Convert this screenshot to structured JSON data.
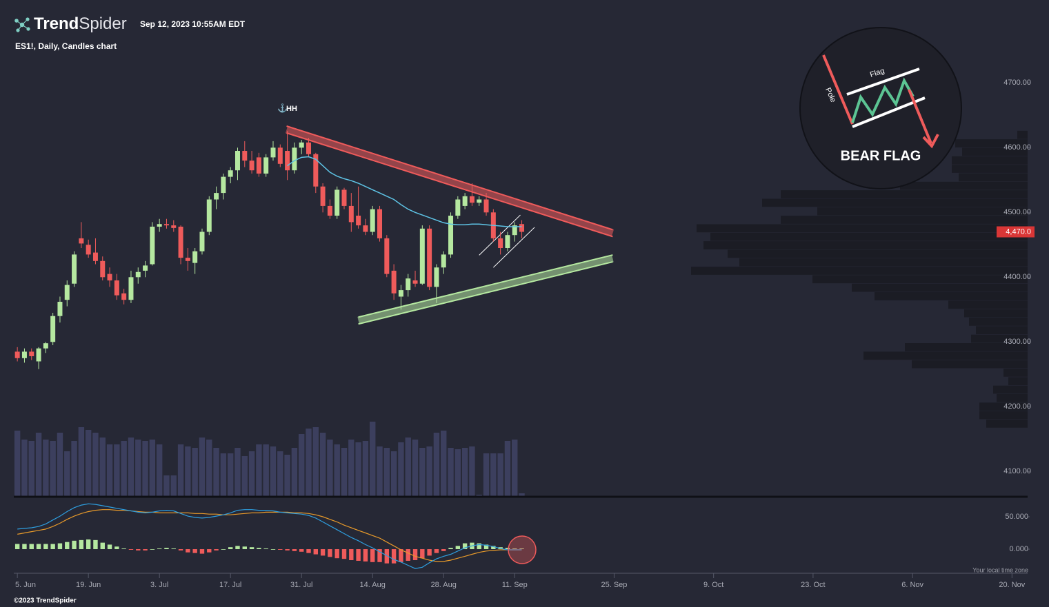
{
  "header": {
    "brand_bold": "Trend",
    "brand_light": "Spider",
    "timestamp": "Sep 12, 2023 10:55AM EDT"
  },
  "footer": {
    "copyright": "©2023 TrendSpider",
    "timezone": "Your local time zone"
  },
  "inset": {
    "pole": "Pole",
    "flag": "Flag",
    "title": "BEAR FLAG"
  },
  "chart_data": {
    "type": "candlestick",
    "title": "ES1!, Daily, Candles chart",
    "annotation": "HH",
    "xlim": [
      -0.5,
      142.2
    ],
    "xticks": [
      {
        "value": 0,
        "label": "5. Jun"
      },
      {
        "value": 10,
        "label": "19. Jun"
      },
      {
        "value": 20,
        "label": "3. Jul"
      },
      {
        "value": 30,
        "label": "17. Jul"
      },
      {
        "value": 40,
        "label": "31. Jul"
      },
      {
        "value": 50,
        "label": "14. Aug"
      },
      {
        "value": 60,
        "label": "28. Aug"
      },
      {
        "value": 70,
        "label": "11. Sep"
      },
      {
        "value": 84,
        "label": "25. Sep"
      },
      {
        "value": 98,
        "label": "9. Oct"
      },
      {
        "value": 112,
        "label": "23. Oct"
      },
      {
        "value": 126,
        "label": "6. Nov"
      },
      {
        "value": 140,
        "label": "20. Nov"
      }
    ],
    "ylim": [
      4062,
      4828
    ],
    "yticks": [
      {
        "value": 4100,
        "label": "4100.00"
      },
      {
        "value": 4200,
        "label": "4200.00"
      },
      {
        "value": 4300,
        "label": "4300.00"
      },
      {
        "value": 4400,
        "label": "4400.00"
      },
      {
        "value": 4500,
        "label": "4500.00"
      },
      {
        "value": 4600,
        "label": "4600.00"
      },
      {
        "value": 4700,
        "label": "4700.00"
      }
    ],
    "up_color": "#b5e8a0",
    "down_color": "#ef5b5b",
    "open": [
      4285,
      4275,
      4285,
      4270,
      4290,
      4300,
      4340,
      4365,
      4390,
      4460,
      4450,
      4438,
      4425,
      4405,
      4395,
      4375,
      4365,
      4400,
      4410,
      4420,
      4478,
      4482,
      4480,
      4478,
      4430,
      4422,
      4440,
      4470,
      4520,
      4530,
      4555,
      4565,
      4595,
      4580,
      4585,
      4560,
      4585,
      4600,
      4595,
      4565,
      4600,
      4608,
      4590,
      4540,
      4510,
      4495,
      4535,
      4510,
      4495,
      4480,
      4470,
      4505,
      4460,
      4410,
      4370,
      4380,
      4395,
      4390,
      4475,
      4385,
      4415,
      4435,
      4495,
      4510,
      4525,
      4515,
      4520,
      4500,
      4460,
      4445,
      4465,
      4482
    ],
    "high": [
      4292,
      4290,
      4290,
      4292,
      4300,
      4345,
      4370,
      4395,
      4440,
      4485,
      4458,
      4460,
      4432,
      4415,
      4405,
      4382,
      4410,
      4415,
      4425,
      4485,
      4490,
      4490,
      4488,
      4480,
      4445,
      4445,
      4475,
      4525,
      4540,
      4560,
      4570,
      4600,
      4610,
      4595,
      4592,
      4590,
      4610,
      4605,
      4626,
      4608,
      4612,
      4615,
      4592,
      4545,
      4520,
      4540,
      4538,
      4530,
      4540,
      4490,
      4510,
      4510,
      4465,
      4420,
      4388,
      4405,
      4410,
      4480,
      4480,
      4420,
      4440,
      4500,
      4525,
      4530,
      4545,
      4525,
      4530,
      4505,
      4470,
      4470,
      4485,
      4488
    ],
    "low": [
      4270,
      4268,
      4272,
      4258,
      4283,
      4295,
      4330,
      4355,
      4385,
      4445,
      4430,
      4420,
      4395,
      4385,
      4365,
      4358,
      4360,
      4390,
      4400,
      4418,
      4470,
      4475,
      4470,
      4420,
      4410,
      4405,
      4435,
      4465,
      4505,
      4520,
      4545,
      4550,
      4570,
      4560,
      4555,
      4555,
      4580,
      4570,
      4550,
      4560,
      4590,
      4585,
      4530,
      4500,
      4490,
      4490,
      4505,
      4470,
      4475,
      4465,
      4465,
      4455,
      4400,
      4365,
      4350,
      4370,
      4385,
      4388,
      4380,
      4360,
      4405,
      4430,
      4490,
      4505,
      4510,
      4510,
      4495,
      4455,
      4435,
      4440,
      4455,
      4460
    ],
    "close": [
      4275,
      4285,
      4278,
      4290,
      4298,
      4340,
      4362,
      4388,
      4435,
      4452,
      4435,
      4425,
      4400,
      4395,
      4372,
      4365,
      4400,
      4408,
      4418,
      4478,
      4482,
      4480,
      4476,
      4430,
      4425,
      4440,
      4470,
      4520,
      4530,
      4555,
      4565,
      4595,
      4580,
      4565,
      4560,
      4585,
      4600,
      4575,
      4565,
      4600,
      4608,
      4590,
      4540,
      4510,
      4495,
      4535,
      4510,
      4485,
      4480,
      4470,
      4505,
      4460,
      4405,
      4375,
      4380,
      4398,
      4390,
      4475,
      4385,
      4415,
      4435,
      4495,
      4520,
      4525,
      4515,
      4520,
      4500,
      4460,
      4445,
      4465,
      4480,
      4470
    ],
    "ma": {
      "color": "#5ec4e6",
      "values": [
        null,
        null,
        null,
        null,
        null,
        null,
        null,
        null,
        null,
        null,
        null,
        null,
        null,
        null,
        null,
        null,
        null,
        null,
        null,
        null,
        null,
        null,
        null,
        null,
        null,
        null,
        null,
        null,
        null,
        null,
        null,
        null,
        null,
        null,
        null,
        null,
        null,
        null,
        4572,
        4580,
        4585,
        4586,
        4582,
        4572,
        4562,
        4556,
        4552,
        4549,
        4545,
        4540,
        4535,
        4530,
        4525,
        4520,
        4512,
        4505,
        4500,
        4496,
        4492,
        4488,
        4484,
        4482,
        4481,
        4481,
        4482,
        4482,
        4481,
        4480,
        4479,
        4478,
        4478,
        4478
      ]
    },
    "last_price": {
      "value": 4470,
      "label": "4,470.0",
      "color": "#d93636"
    },
    "trendlines": [
      {
        "x": [
          37.9,
          83.8
        ],
        "y": [
          4628,
          4468
        ],
        "color": "#ef5b5b",
        "style": "band"
      },
      {
        "x": [
          48,
          83.8
        ],
        "y": [
          4333,
          4429
        ],
        "color": "#b5e8a0",
        "style": "band"
      },
      {
        "x": [
          65,
          70.8
        ],
        "y": [
          4434,
          4496
        ],
        "color": "#ffffff",
        "style": "line"
      },
      {
        "x": [
          67,
          72.8
        ],
        "y": [
          4415,
          4477
        ],
        "color": "#ffffff",
        "style": "line"
      }
    ],
    "volume": {
      "color": "#3c3f5e",
      "ylim": [
        0,
        110
      ],
      "values": [
        95,
        82,
        80,
        92,
        82,
        80,
        92,
        65,
        80,
        100,
        96,
        92,
        85,
        75,
        75,
        80,
        85,
        82,
        80,
        82,
        75,
        30,
        30,
        75,
        72,
        70,
        85,
        82,
        70,
        62,
        62,
        70,
        58,
        65,
        75,
        75,
        72,
        65,
        60,
        70,
        90,
        98,
        100,
        92,
        82,
        75,
        70,
        82,
        78,
        80,
        108,
        72,
        70,
        65,
        78,
        85,
        82,
        70,
        72,
        92,
        95,
        70,
        68,
        70,
        72,
        2,
        62,
        62,
        62,
        80,
        82,
        4
      ]
    },
    "profile": {
      "color": "#1b1c24",
      "range": [
        4167,
        4626
      ],
      "xlim": [
        0,
        500
      ],
      "values": [
        15,
        105,
        95,
        110,
        110,
        100,
        185,
        358,
        385,
        305,
        358,
        480,
        460,
        470,
        435,
        418,
        488,
        312,
        255,
        222,
        115,
        92,
        85,
        75,
        82,
        178,
        238,
        168,
        35,
        28,
        50,
        45,
        70,
        70,
        60
      ]
    },
    "macd": {
      "ylim": [
        -37.2,
        76.6
      ],
      "yticks": [
        {
          "value": 0,
          "label": "0.000"
        },
        {
          "value": 50,
          "label": "50.000"
        }
      ],
      "macd_color": "#2e9fe0",
      "signal_color": "#e89a2a",
      "macd": [
        31,
        32,
        33,
        35,
        39,
        45,
        51,
        58,
        64,
        68,
        70,
        69,
        67,
        65,
        63,
        61,
        59,
        57,
        56,
        57,
        59,
        60,
        59,
        55,
        51,
        49,
        48,
        49,
        51,
        53,
        56,
        60,
        61,
        61,
        60,
        60,
        59,
        57,
        56,
        55,
        54,
        52,
        48,
        42,
        36,
        30,
        24,
        18,
        13,
        7,
        2,
        -4,
        -10,
        -16,
        -20,
        -25,
        -30,
        -28,
        -21,
        -15,
        -11,
        -8,
        -3,
        2,
        5,
        7,
        6,
        4,
        1,
        -1,
        -1,
        -1
      ],
      "signal": [
        23,
        25,
        27,
        29,
        31,
        35,
        40,
        46,
        51,
        55,
        58,
        60,
        61,
        61,
        60,
        60,
        59,
        58,
        57,
        57,
        56,
        56,
        56,
        56,
        56,
        55,
        55,
        54,
        54,
        53,
        53,
        54,
        55,
        56,
        56,
        57,
        57,
        57,
        57,
        56,
        56,
        55,
        53,
        50,
        46,
        42,
        37,
        33,
        29,
        25,
        21,
        17,
        11,
        5,
        -1,
        -6,
        -11,
        -14,
        -17,
        -19,
        -19,
        -17,
        -14,
        -11,
        -8,
        -5,
        -3,
        -2,
        -1,
        -1,
        -1,
        -1
      ],
      "histogram": [
        8,
        8,
        8,
        8,
        8,
        8,
        9,
        11,
        13,
        14,
        15,
        14,
        10,
        7,
        4,
        1,
        -1,
        -2,
        -2,
        0,
        1,
        2,
        1,
        -2,
        -5,
        -6,
        -7,
        -5,
        -2,
        0,
        3,
        5,
        4,
        3,
        2,
        1,
        0,
        -1,
        -2,
        -3,
        -4,
        -6,
        -8,
        -10,
        -12,
        -14,
        -15,
        -17,
        -18,
        -19,
        -20,
        -20,
        -22,
        -22,
        -20,
        -18,
        -17,
        -14,
        -10,
        -6,
        -3,
        2,
        5,
        9,
        10,
        9,
        7,
        5,
        3,
        2,
        1,
        1
      ]
    }
  }
}
